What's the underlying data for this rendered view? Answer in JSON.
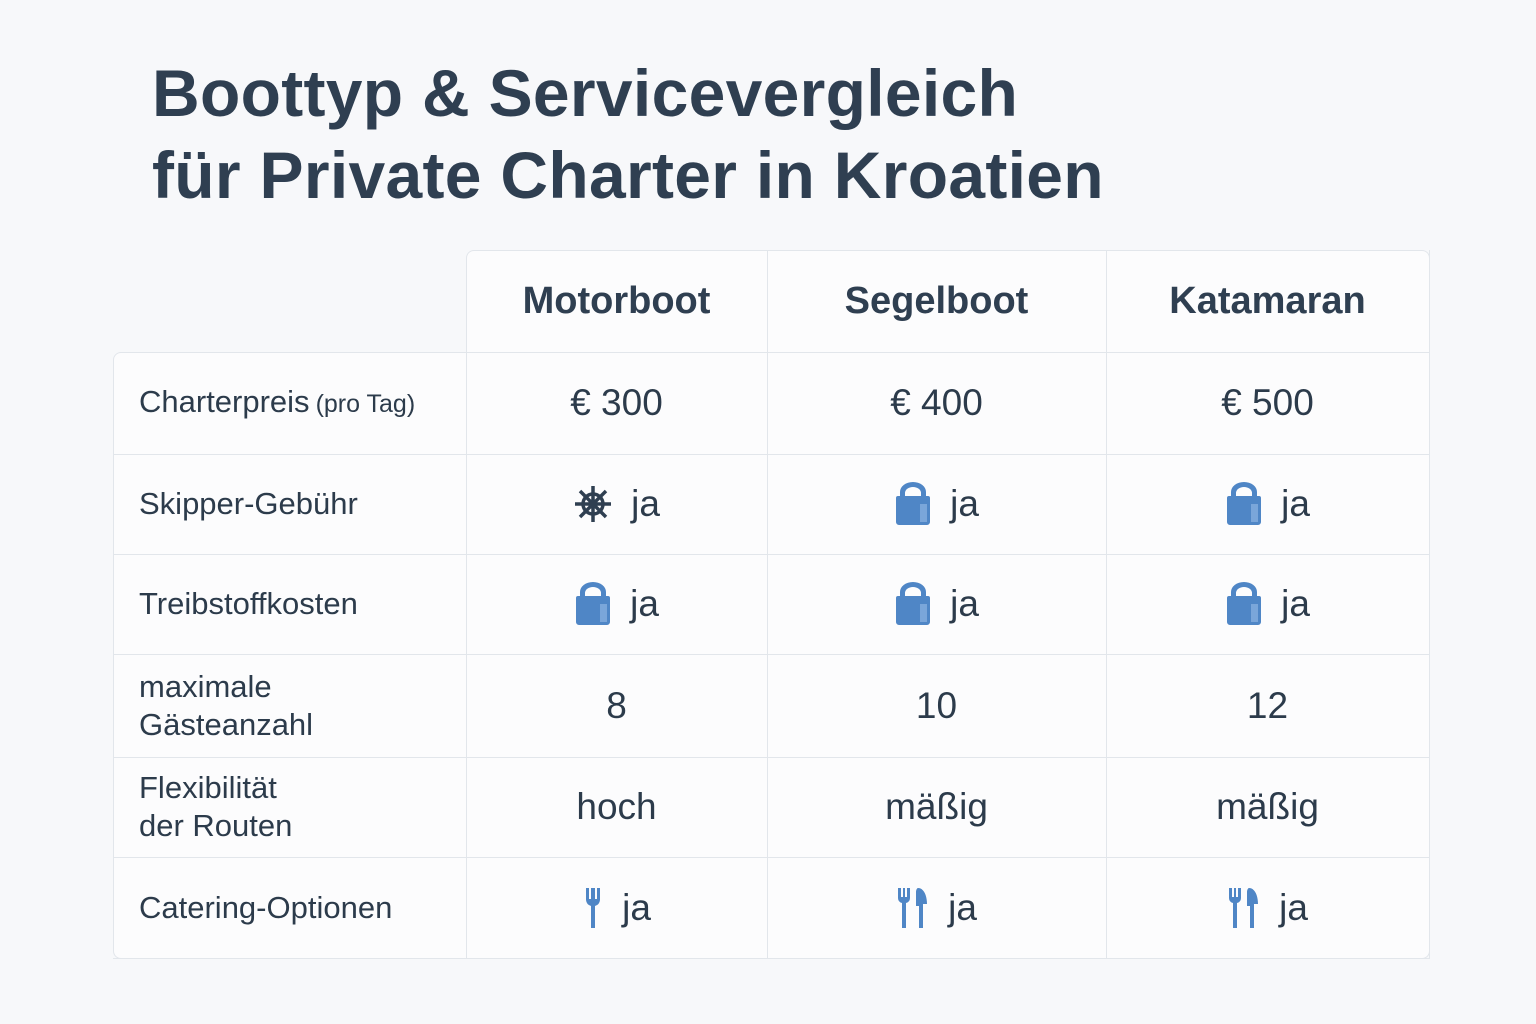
{
  "title": [
    "Boottyp & Servicevergleich",
    "für Private Charter in Kroatien"
  ],
  "table": {
    "columns": [
      "Motorboot",
      "Segelboot",
      "Katamaran"
    ],
    "rows": [
      {
        "label": [
          "Charterpreis"
        ],
        "note": "(pro Tag)",
        "cells": [
          "€ 300",
          "€ 400",
          "€ 500"
        ]
      },
      {
        "label": [
          "Skipper-Gebühr"
        ],
        "cells": [
          "ja",
          "ja",
          "ja"
        ]
      },
      {
        "label": [
          "Treibstoffkosten"
        ],
        "cells": [
          "ja",
          "ja",
          "ja"
        ]
      },
      {
        "label": [
          "maximale",
          "Gästeanzahl"
        ],
        "cells": [
          8,
          10,
          12
        ]
      },
      {
        "label": [
          "Flexibilität",
          "der Routen"
        ],
        "cells": [
          "hoch",
          "mäßig",
          "mäßig"
        ]
      },
      {
        "label": [
          "Catering-Optionen"
        ],
        "cells": [
          "ja",
          "ja",
          "ja"
        ]
      }
    ]
  }
}
